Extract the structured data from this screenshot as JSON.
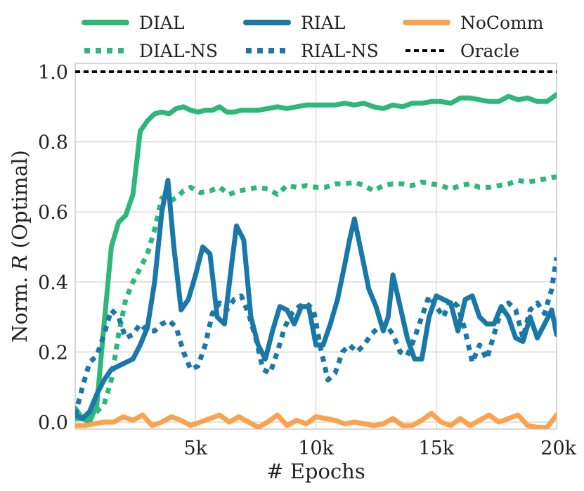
{
  "chart_data": {
    "type": "line",
    "xlabel": "# Epochs",
    "ylabel": "Norm. R (Optimal)",
    "ylabel_parts": {
      "prefix": "Norm. ",
      "var": "R",
      "suffix": " (Optimal)"
    },
    "xlim": [
      0,
      20000
    ],
    "ylim": [
      -0.02,
      1.0
    ],
    "xticks": [
      5000,
      10000,
      15000,
      20000
    ],
    "xtick_labels": [
      "5k",
      "10k",
      "15k",
      "20k"
    ],
    "yticks": [
      0.0,
      0.2,
      0.4,
      0.6,
      0.8,
      1.0
    ],
    "ytick_labels": [
      "0.0",
      "0.2",
      "0.4",
      "0.6",
      "0.8",
      "1.0"
    ],
    "grid": true,
    "legend_position": "top",
    "series": [
      {
        "name": "DIAL",
        "color": "#2db87a",
        "style": "solid",
        "x": [
          0,
          300,
          600,
          900,
          1200,
          1500,
          1800,
          2100,
          2400,
          2700,
          3000,
          3300,
          3600,
          3900,
          4200,
          4500,
          4800,
          5100,
          5400,
          5700,
          6000,
          6300,
          6600,
          6900,
          7200,
          7600,
          8000,
          8400,
          8800,
          9200,
          9600,
          10000,
          10400,
          10800,
          11200,
          11600,
          12000,
          12400,
          12800,
          13200,
          13600,
          14000,
          14400,
          14800,
          15200,
          15600,
          16000,
          16400,
          16800,
          17200,
          17600,
          18000,
          18400,
          18800,
          19200,
          19600,
          20000
        ],
        "y": [
          0.04,
          0.01,
          0.0,
          0.05,
          0.28,
          0.5,
          0.57,
          0.59,
          0.65,
          0.83,
          0.86,
          0.88,
          0.885,
          0.88,
          0.895,
          0.9,
          0.89,
          0.885,
          0.89,
          0.89,
          0.9,
          0.885,
          0.885,
          0.89,
          0.89,
          0.89,
          0.895,
          0.9,
          0.895,
          0.9,
          0.905,
          0.905,
          0.905,
          0.905,
          0.91,
          0.905,
          0.91,
          0.9,
          0.895,
          0.905,
          0.9,
          0.91,
          0.91,
          0.915,
          0.915,
          0.91,
          0.925,
          0.925,
          0.92,
          0.915,
          0.915,
          0.93,
          0.92,
          0.925,
          0.915,
          0.915,
          0.935
        ]
      },
      {
        "name": "DIAL-NS",
        "color": "#2db87a",
        "style": "dotted",
        "x": [
          0,
          300,
          600,
          900,
          1200,
          1500,
          1800,
          2100,
          2400,
          2700,
          3000,
          3300,
          3600,
          3900,
          4200,
          4500,
          4800,
          5200,
          5600,
          6000,
          6400,
          6800,
          7200,
          7600,
          8000,
          8400,
          8800,
          9200,
          9600,
          10000,
          10400,
          10800,
          11200,
          11600,
          12000,
          12400,
          12800,
          13200,
          13600,
          14000,
          14400,
          14800,
          15200,
          15600,
          16000,
          16400,
          16800,
          17200,
          17600,
          18000,
          18400,
          18800,
          19200,
          19600,
          20000
        ],
        "y": [
          0.01,
          0.01,
          0.02,
          0.03,
          0.05,
          0.12,
          0.25,
          0.35,
          0.4,
          0.44,
          0.48,
          0.55,
          0.64,
          0.63,
          0.64,
          0.66,
          0.67,
          0.655,
          0.66,
          0.67,
          0.65,
          0.66,
          0.665,
          0.67,
          0.665,
          0.65,
          0.675,
          0.67,
          0.675,
          0.67,
          0.67,
          0.68,
          0.68,
          0.685,
          0.675,
          0.66,
          0.675,
          0.68,
          0.68,
          0.675,
          0.685,
          0.68,
          0.675,
          0.665,
          0.675,
          0.68,
          0.67,
          0.67,
          0.675,
          0.68,
          0.69,
          0.685,
          0.69,
          0.695,
          0.7
        ]
      },
      {
        "name": "RIAL",
        "color": "#1a78a8",
        "style": "solid",
        "x": [
          0,
          300,
          600,
          900,
          1200,
          1500,
          1800,
          2100,
          2400,
          2700,
          3000,
          3300,
          3600,
          3850,
          4100,
          4400,
          4700,
          5000,
          5300,
          5600,
          5900,
          6200,
          6500,
          6700,
          7000,
          7300,
          7600,
          7900,
          8200,
          8500,
          8800,
          9100,
          9400,
          9700,
          10000,
          10300,
          10600,
          10900,
          11200,
          11400,
          11600,
          11900,
          12200,
          12500,
          12800,
          13000,
          13200,
          13500,
          13800,
          14100,
          14400,
          14700,
          15000,
          15300,
          15600,
          15900,
          16200,
          16500,
          16800,
          17100,
          17400,
          17700,
          18000,
          18300,
          18600,
          18900,
          19200,
          19500,
          19800,
          20000
        ],
        "y": [
          0.02,
          0.01,
          0.03,
          0.08,
          0.12,
          0.15,
          0.16,
          0.17,
          0.18,
          0.22,
          0.27,
          0.4,
          0.6,
          0.69,
          0.5,
          0.32,
          0.35,
          0.42,
          0.5,
          0.48,
          0.3,
          0.28,
          0.45,
          0.56,
          0.52,
          0.3,
          0.22,
          0.18,
          0.26,
          0.33,
          0.32,
          0.28,
          0.33,
          0.33,
          0.22,
          0.22,
          0.28,
          0.35,
          0.45,
          0.52,
          0.58,
          0.48,
          0.38,
          0.33,
          0.26,
          0.3,
          0.42,
          0.33,
          0.24,
          0.18,
          0.18,
          0.3,
          0.36,
          0.35,
          0.34,
          0.26,
          0.35,
          0.36,
          0.3,
          0.28,
          0.28,
          0.33,
          0.3,
          0.24,
          0.23,
          0.3,
          0.24,
          0.28,
          0.32,
          0.25
        ]
      },
      {
        "name": "RIAL-NS",
        "color": "#1a78a8",
        "style": "dotted",
        "x": [
          0,
          300,
          600,
          900,
          1200,
          1500,
          1800,
          2100,
          2400,
          2700,
          3000,
          3300,
          3600,
          3900,
          4200,
          4500,
          4800,
          5100,
          5400,
          5700,
          6000,
          6300,
          6600,
          6900,
          7200,
          7500,
          7800,
          8100,
          8400,
          8700,
          9000,
          9300,
          9600,
          9900,
          10200,
          10500,
          10800,
          11100,
          11400,
          11700,
          12000,
          12300,
          12600,
          12900,
          13200,
          13500,
          13800,
          14100,
          14400,
          14700,
          15000,
          15300,
          15600,
          15900,
          16200,
          16500,
          16800,
          17100,
          17400,
          17700,
          18000,
          18300,
          18600,
          18900,
          19200,
          19500,
          19800,
          20000
        ],
        "y": [
          0.02,
          0.1,
          0.17,
          0.19,
          0.25,
          0.32,
          0.3,
          0.24,
          0.25,
          0.28,
          0.26,
          0.26,
          0.28,
          0.29,
          0.27,
          0.2,
          0.15,
          0.16,
          0.22,
          0.31,
          0.34,
          0.32,
          0.35,
          0.36,
          0.31,
          0.24,
          0.15,
          0.14,
          0.2,
          0.27,
          0.31,
          0.33,
          0.34,
          0.32,
          0.21,
          0.12,
          0.14,
          0.2,
          0.22,
          0.2,
          0.22,
          0.25,
          0.27,
          0.28,
          0.25,
          0.2,
          0.19,
          0.24,
          0.3,
          0.36,
          0.33,
          0.3,
          0.35,
          0.33,
          0.26,
          0.17,
          0.22,
          0.18,
          0.25,
          0.32,
          0.34,
          0.32,
          0.24,
          0.32,
          0.34,
          0.31,
          0.38,
          0.47
        ]
      },
      {
        "name": "NoComm",
        "color": "#f9a34e",
        "style": "solid",
        "x": [
          0,
          400,
          800,
          1200,
          1600,
          2000,
          2400,
          2800,
          3200,
          3600,
          4000,
          4400,
          4800,
          5200,
          5600,
          6000,
          6400,
          6800,
          7200,
          7600,
          8000,
          8400,
          8800,
          9200,
          9600,
          10000,
          10400,
          10800,
          11200,
          11600,
          12000,
          12400,
          12800,
          13200,
          13600,
          14000,
          14400,
          14800,
          15200,
          15600,
          16000,
          16400,
          16800,
          17200,
          17600,
          18000,
          18400,
          18800,
          19200,
          19600,
          20000
        ],
        "y": [
          -0.01,
          -0.01,
          -0.005,
          0.0,
          0.0,
          0.015,
          0.005,
          0.02,
          -0.01,
          0.0,
          0.015,
          0.005,
          -0.01,
          0.0,
          0.01,
          0.02,
          0.0,
          0.015,
          0.0,
          -0.015,
          0.0,
          0.02,
          -0.01,
          0.005,
          -0.005,
          0.015,
          0.01,
          0.005,
          -0.005,
          0.0,
          -0.005,
          -0.01,
          -0.005,
          0.01,
          -0.01,
          -0.01,
          0.005,
          0.025,
          0.0,
          -0.01,
          0.01,
          -0.01,
          0.005,
          0.02,
          0.0,
          0.01,
          0.02,
          -0.01,
          -0.015,
          -0.015,
          0.02
        ]
      },
      {
        "name": "Oracle",
        "color": "#000000",
        "style": "dashed",
        "x": [
          0,
          20000
        ],
        "y": [
          1.0,
          1.0
        ]
      }
    ]
  }
}
